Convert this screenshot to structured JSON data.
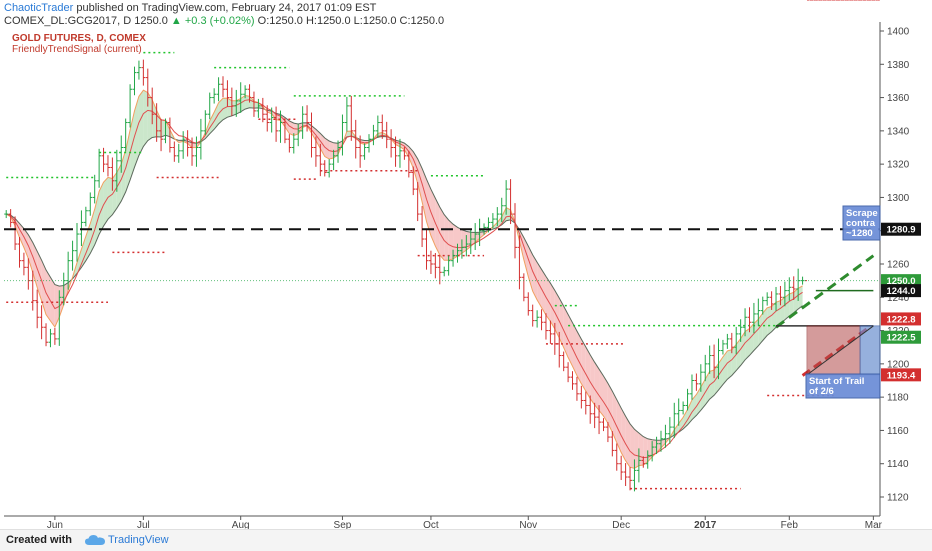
{
  "header": {
    "publisher": "ChaoticTrader",
    "published_text": "published on TradingView.com, February 24, 2017 01:09 EST",
    "symbol_line_a": "COMEX_DL:GCG2017, D  1250.0 ",
    "change": "▲ +0.3 (+0.02%)",
    "symbol_line_b": " O:1250.0  H:1250.0  L:1250.0  C:1250.0"
  },
  "indicator": {
    "title": "GOLD FUTURES, D, COMEX",
    "name": "FriendlyTrendSignal (current)"
  },
  "footer": {
    "created_with": "Created with",
    "brand": "TradingView"
  },
  "colors": {
    "up": "#21a647",
    "down": "#d32f2f",
    "band_up": "#b9dfb9",
    "band_down": "#f4b6b6",
    "support": "#d32f2f",
    "resistance": "#21c42c",
    "accent": "#2a7ad6"
  },
  "chart_data": {
    "type": "ohlc",
    "title": "GOLD FUTURES, D, COMEX",
    "ylim": [
      1110,
      1400
    ],
    "yticks": [
      1120,
      1140,
      1160,
      1180,
      1200,
      1220,
      1240,
      1260,
      1280,
      1300,
      1320,
      1340,
      1360,
      1380,
      1400
    ],
    "x_tick_labels": [
      {
        "label": "Jun",
        "bar": 11
      },
      {
        "label": "Jul",
        "bar": 31
      },
      {
        "label": "Aug",
        "bar": 53
      },
      {
        "label": "Sep",
        "bar": 76
      },
      {
        "label": "Oct",
        "bar": 96
      },
      {
        "label": "Nov",
        "bar": 118
      },
      {
        "label": "Dec",
        "bar": 139
      },
      {
        "label": "2017",
        "bar": 158
      },
      {
        "label": "Feb",
        "bar": 177
      },
      {
        "label": "Mar",
        "bar": 196
      }
    ],
    "x_bar_count": 198,
    "closes": [
      1290,
      1285,
      1272,
      1262,
      1258,
      1250,
      1238,
      1228,
      1222,
      1213,
      1218,
      1215,
      1240,
      1250,
      1262,
      1268,
      1278,
      1285,
      1292,
      1300,
      1310,
      1325,
      1320,
      1318,
      1310,
      1322,
      1330,
      1345,
      1365,
      1375,
      1378,
      1372,
      1360,
      1350,
      1340,
      1335,
      1345,
      1330,
      1325,
      1328,
      1335,
      1330,
      1325,
      1330,
      1340,
      1350,
      1360,
      1362,
      1368,
      1365,
      1360,
      1355,
      1358,
      1362,
      1365,
      1360,
      1352,
      1355,
      1350,
      1345,
      1348,
      1340,
      1345,
      1335,
      1330,
      1335,
      1340,
      1350,
      1345,
      1330,
      1325,
      1320,
      1315,
      1320,
      1325,
      1330,
      1345,
      1355,
      1340,
      1330,
      1325,
      1330,
      1335,
      1340,
      1345,
      1340,
      1335,
      1330,
      1325,
      1328,
      1325,
      1315,
      1305,
      1290,
      1275,
      1262,
      1260,
      1258,
      1255,
      1256,
      1262,
      1265,
      1268,
      1270,
      1272,
      1275,
      1278,
      1280,
      1282,
      1285,
      1287,
      1290,
      1295,
      1305,
      1290,
      1270,
      1252,
      1240,
      1232,
      1226,
      1228,
      1225,
      1220,
      1218,
      1212,
      1205,
      1198,
      1192,
      1188,
      1182,
      1178,
      1175,
      1170,
      1168,
      1165,
      1162,
      1156,
      1148,
      1140,
      1135,
      1132,
      1130,
      1136,
      1142,
      1140,
      1145,
      1150,
      1152,
      1155,
      1158,
      1162,
      1170,
      1172,
      1175,
      1182,
      1190,
      1188,
      1195,
      1200,
      1205,
      1198,
      1208,
      1212,
      1215,
      1210,
      1218,
      1222,
      1228,
      1225,
      1230,
      1232,
      1238,
      1240,
      1236,
      1242,
      1240,
      1244,
      1246,
      1245,
      1250,
      1250
    ],
    "price_labels": [
      {
        "value": 1280.9,
        "text": "1280.9",
        "style": "dark"
      },
      {
        "value": 1250.0,
        "text": "1250.0",
        "style": "green"
      },
      {
        "value": 1244.0,
        "text": "1244.0",
        "style": "dark"
      },
      {
        "value": 1222.8,
        "text": "1222.8",
        "style": "red"
      },
      {
        "value": 1222.5,
        "text": "1222.5",
        "style": "green"
      },
      {
        "value": 1193.4,
        "text": "1193.4",
        "style": "red"
      }
    ],
    "resistance_lines": [
      {
        "from": 0,
        "to": 20,
        "y": 1312
      },
      {
        "from": 21,
        "to": 31,
        "y": 1327
      },
      {
        "from": 31,
        "to": 38,
        "y": 1387
      },
      {
        "from": 47,
        "to": 64,
        "y": 1378
      },
      {
        "from": 65,
        "to": 90,
        "y": 1361
      },
      {
        "from": 96,
        "to": 108,
        "y": 1313
      },
      {
        "from": 127,
        "to": 175,
        "y": 1223
      },
      {
        "from": 124,
        "to": 129,
        "y": 1235
      }
    ],
    "support_lines": [
      {
        "from": 0,
        "to": 23,
        "y": 1237
      },
      {
        "from": 24,
        "to": 36,
        "y": 1267
      },
      {
        "from": 34,
        "to": 48,
        "y": 1312
      },
      {
        "from": 57,
        "to": 66,
        "y": 1347
      },
      {
        "from": 65,
        "to": 70,
        "y": 1311
      },
      {
        "from": 71,
        "to": 93,
        "y": 1316
      },
      {
        "from": 93,
        "to": 108,
        "y": 1265
      },
      {
        "from": 122,
        "to": 140,
        "y": 1212
      },
      {
        "from": 141,
        "to": 166,
        "y": 1125
      },
      {
        "from": 172,
        "to": 187,
        "y": 1181
      }
    ],
    "horizontal_line": {
      "y": 1280.9,
      "style": "dashed"
    },
    "annotations": [
      {
        "text": "Scrape",
        "style": "blue-box"
      },
      {
        "text": "contra",
        "style": "blue-box"
      },
      {
        "text": "~1280",
        "style": "blue-box"
      },
      {
        "text": "Start of Trail",
        "style": "blue-box"
      },
      {
        "text": "of 2/6",
        "style": "blue-box"
      }
    ]
  }
}
